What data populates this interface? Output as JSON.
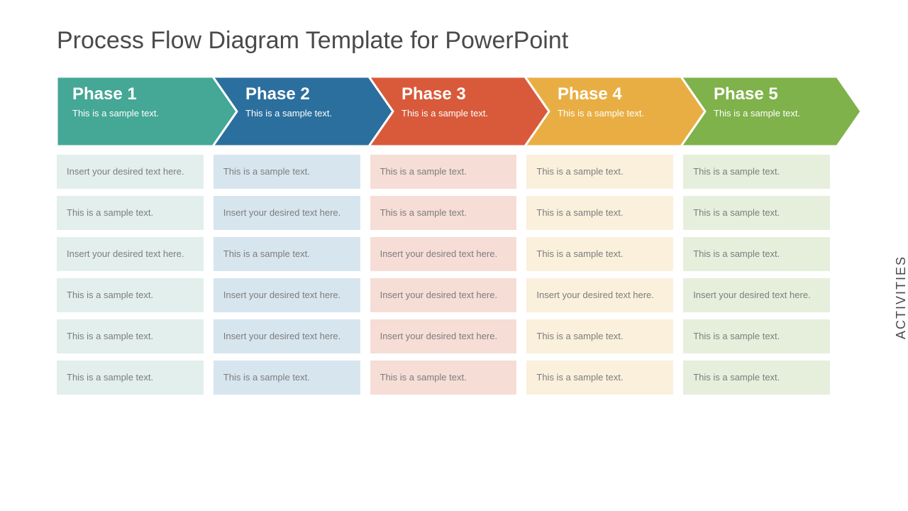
{
  "title": "Process Flow Diagram Template for PowerPoint",
  "side_label": "ACTIVITIES",
  "chevron": {
    "height": 98,
    "step_width": 220,
    "notch": 34,
    "border_color": "#ffffff",
    "border_width": 3,
    "title_fontsize": 24,
    "sub_fontsize": 13,
    "title_color": "#ffffff"
  },
  "cell_style": {
    "fontsize": 13,
    "text_color": "#7d7d7d",
    "row_gap": 10,
    "col_gap": 14,
    "min_height": 48
  },
  "phases": [
    {
      "title": "Phase 1",
      "subtitle": "This is a sample text.",
      "color": "#45a796",
      "cell_bg": "#e2efec",
      "activities": [
        "Insert your desired text here.",
        "This  is a sample  text.",
        "Insert your desired text here.",
        "This  is a sample  text.",
        "This  is a sample  text.",
        "This  is a sample  text."
      ]
    },
    {
      "title": "Phase 2",
      "subtitle": "This is a sample text.",
      "color": "#2b6f9e",
      "cell_bg": "#d7e5ef",
      "activities": [
        "This  is a sample  text.",
        "Insert your desired text here.",
        "This  is a sample  text.",
        "Insert your desired text here.",
        "Insert your desired text here.",
        "This  is a sample  text."
      ]
    },
    {
      "title": "Phase 3",
      "subtitle": "This is a sample text.",
      "color": "#d85a3a",
      "cell_bg": "#f6ddd6",
      "activities": [
        "This  is a sample  text.",
        "This  is a sample  text.",
        "Insert your desired text here.",
        "Insert your desired text here.",
        "Insert your desired text here.",
        "This  is a sample  text."
      ]
    },
    {
      "title": "Phase 4",
      "subtitle": "This is a sample text.",
      "color": "#e9ae43",
      "cell_bg": "#faf0dc",
      "activities": [
        "This  is a sample  text.",
        "This  is a sample  text.",
        "This  is a sample  text.",
        "Insert your desired text here.",
        "This  is a sample  text.",
        "This  is a sample  text."
      ]
    },
    {
      "title": "Phase 5",
      "subtitle": "This is a sample text.",
      "color": "#7fb24a",
      "cell_bg": "#e6efdc",
      "activities": [
        "This  is a sample  text.",
        "This  is a sample  text.",
        "This  is a sample  text.",
        "Insert your desired text here.",
        "This  is a sample  text.",
        "This  is a sample  text."
      ]
    }
  ]
}
